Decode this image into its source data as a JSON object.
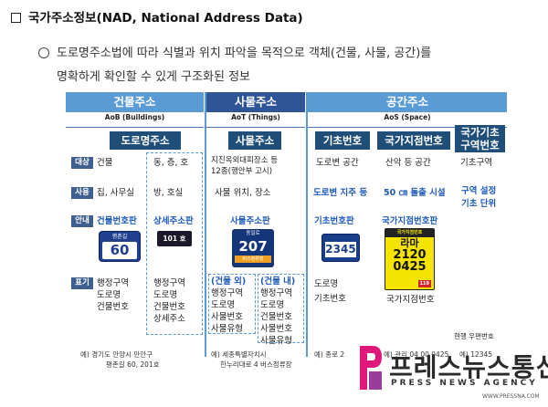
{
  "title": "국가주소정보(NAD, National Address Data)",
  "description": {
    "line1": "도로명주소법에 따라 식별과 위치 파악을 목적으로 객체(건물, 사물, 공간)를",
    "line2": "명확하게 확인할 수 있게 구조화된 정보"
  },
  "table": {
    "headers": {
      "building": "건물주소",
      "object": "사물주소",
      "space": "공간주소"
    },
    "subheaders": {
      "building": "AoB (Buildings)",
      "object": "AoT (Things)",
      "space": "AoS (Space)"
    },
    "row_labels": [
      "대상",
      "사용",
      "안내",
      "표기"
    ],
    "categories": {
      "road_address": "도로명주소",
      "object_address": "사물주소",
      "base_number": "기초번호",
      "national_point": "국가지점번호",
      "national_base_zone_line1": "국가기초",
      "national_base_zone_line2": "구역번호"
    },
    "columns": {
      "building": {
        "target": "건물",
        "use": "집, 사무실",
        "guide": "건물번호판",
        "notation": [
          "행정구역",
          "도로명",
          "건물번호"
        ],
        "plate_top": "평촌길",
        "plate_number": "60"
      },
      "detail": {
        "target": "동, 층, 호",
        "use": "방, 호실",
        "guide": "상세주소판",
        "notation": [
          "행정구역",
          "도로명",
          "건물번호",
          "상세주소"
        ],
        "plate_text": "101 호"
      },
      "object": {
        "target_line1": "지진옥외대피장소 등",
        "target_line2": "12종(행안부 고시)",
        "use": "사물 위치, 장소",
        "guide": "사물주소판",
        "plate_top": "동일로",
        "plate_number": "207",
        "plate_bottom": "버스정류장",
        "outside_header": "(건물 외)",
        "outside_notation": [
          "행정구역",
          "도로명",
          "사물번호",
          "사물유형"
        ],
        "inside_header": "(건물 내)",
        "inside_notation": [
          "행정구역",
          "도로명",
          "건물번호",
          "사물번호",
          "사물유형"
        ],
        "footnote_line1": "예) 세종특별자치시",
        "footnote_line2": "한누리대로 4 버스정류장"
      },
      "base": {
        "target": "도로변 공간",
        "use": "도로변 지주 등",
        "guide": "기초번호판",
        "plate_number": "2345",
        "notation": [
          "도로명",
          "기초번호"
        ]
      },
      "point": {
        "target": "산악 등 공간",
        "use": "50 ㎝ 돌출 시설",
        "guide": "국가지점번호판",
        "plate_top": "국가지점번호",
        "plate_letters": "라마",
        "plate_line1": "2120",
        "plate_line2": "0425",
        "plate_small": "119",
        "notation": "국가지점번호"
      },
      "zone": {
        "target": "기초구역",
        "use_line1": "구역 설정",
        "use_line2": "기초 단위",
        "notation": "현행 우편번호"
      }
    },
    "footnotes": {
      "building_line1": "예) 경기도 안양시 만안구",
      "building_line2": "평촌길 60, 201호",
      "base_partial": "예) 종로 2",
      "point_partial": "예) 관리 04 00 0425",
      "zone_partial": "예) 12345"
    }
  },
  "watermark": {
    "korean": "프레스뉴스통신",
    "english": "PRESS NEWS AGENCY",
    "url": "WWW.PRESSNA.COM"
  },
  "colors": {
    "header_light": "#5b9bd5",
    "header_dark": "#2f5597",
    "category": "#1f4e79",
    "accent_text": "#1f5bb8",
    "point_plate": "#f5e400",
    "logo_pink": "#e0177b"
  }
}
